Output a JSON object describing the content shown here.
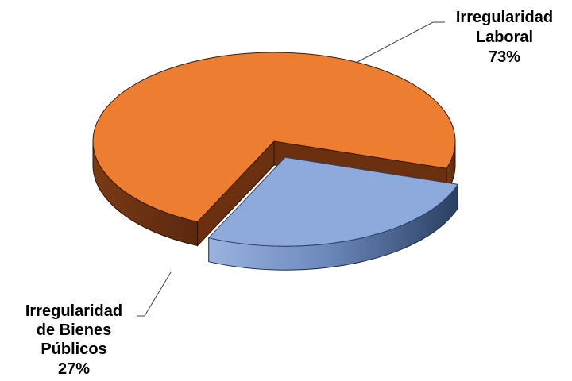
{
  "chart_data": {
    "type": "pie",
    "style": "3d-exploded",
    "slices": [
      {
        "label_lines": [
          "Irregularidad",
          "Laboral"
        ],
        "value": 73,
        "value_text": "73%",
        "color": "#ED7D31",
        "side_color": "#6B3010"
      },
      {
        "label_lines": [
          "Irregularidad",
          "de Bienes",
          "Públicos"
        ],
        "value": 27,
        "value_text": "27%",
        "color": "#8EA9DB",
        "side_color": "#51688F"
      }
    ],
    "legend": "none"
  }
}
